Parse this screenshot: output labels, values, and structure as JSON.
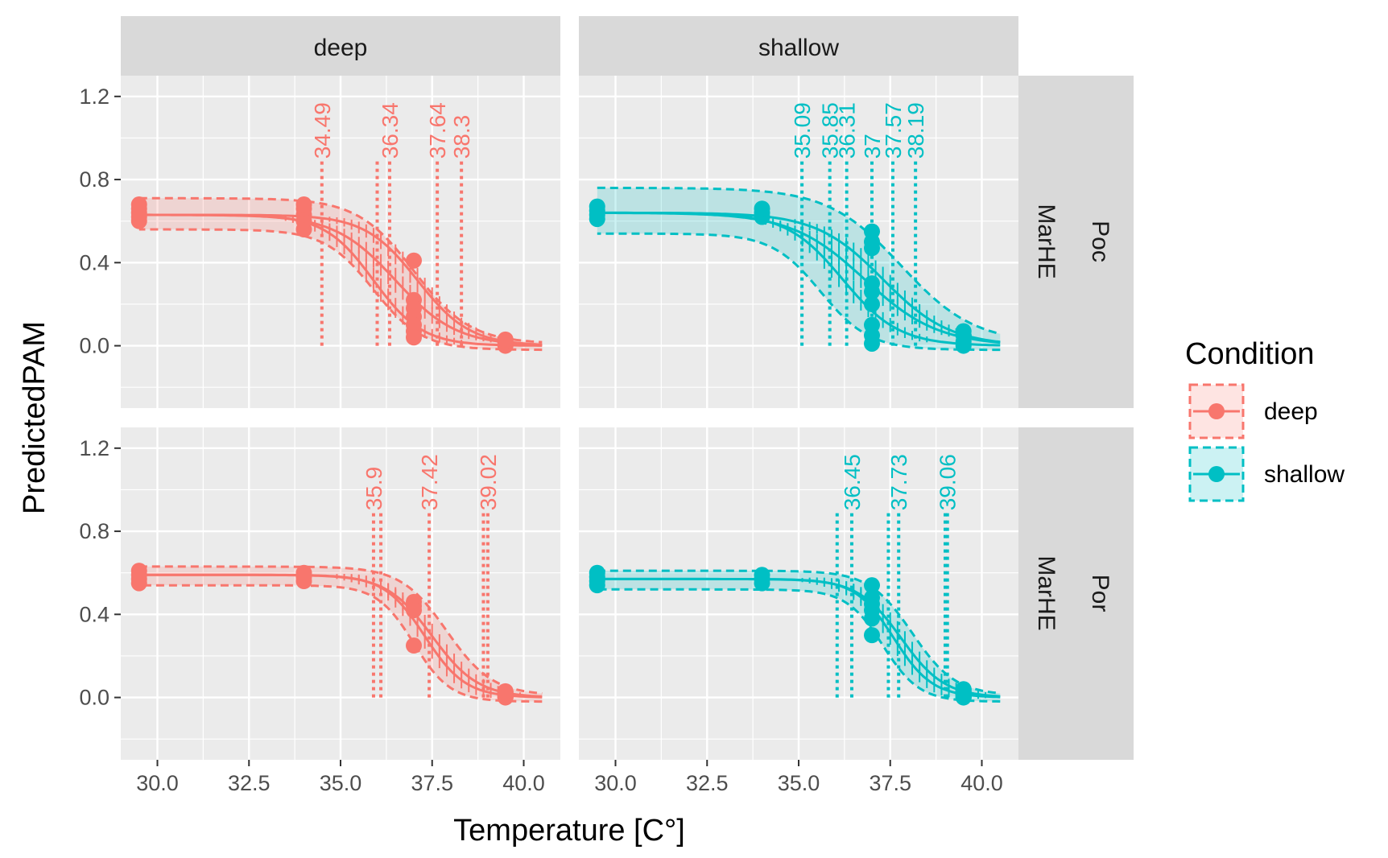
{
  "chart_data": {
    "type": "line",
    "xlabel": "Temperature [C°]",
    "ylabel": "PredictedPAM",
    "xlim": [
      29.0,
      41.0
    ],
    "ylim": [
      -0.3,
      1.3
    ],
    "x_ticks": [
      "30.0",
      "32.5",
      "35.0",
      "37.5",
      "40.0"
    ],
    "x_tick_values": [
      30.0,
      32.5,
      35.0,
      37.5,
      40.0
    ],
    "y_ticks": [
      "0.0",
      "0.4",
      "0.8",
      "1.2"
    ],
    "y_tick_values": [
      0.0,
      0.4,
      0.8,
      1.2
    ],
    "grid": true,
    "legend": {
      "title": "Condition",
      "position": "right",
      "entries": [
        "deep",
        "shallow"
      ]
    },
    "colors": {
      "deep": "#F8766D",
      "shallow": "#00BFC4",
      "panel_bg": "#EBEBEB",
      "strip_bg": "#D9D9D9"
    },
    "column_strips": [
      "deep",
      "shallow"
    ],
    "row_strips": [
      {
        "right": "Poc",
        "left": "MarHE"
      },
      {
        "right": "Por",
        "left": "MarHE"
      }
    ],
    "panels": [
      {
        "row": 0,
        "col": 0,
        "condition": "deep",
        "curves": [
          {
            "top": 0.63,
            "mid": 35.9,
            "k": 1.5
          },
          {
            "top": 0.63,
            "mid": 36.5,
            "k": 1.2
          },
          {
            "top": 0.63,
            "mid": 37.1,
            "k": 1.4
          }
        ],
        "band": {
          "upper": {
            "top": 0.7,
            "mid": 37.0,
            "k": 1.3
          },
          "lower": {
            "top": 0.58,
            "mid": 35.9,
            "k": 1.5
          }
        },
        "points": [
          [
            29.5,
            0.6
          ],
          [
            29.5,
            0.62
          ],
          [
            29.5,
            0.64
          ],
          [
            29.5,
            0.66
          ],
          [
            29.5,
            0.68
          ],
          [
            34.0,
            0.56
          ],
          [
            34.0,
            0.6
          ],
          [
            34.0,
            0.63
          ],
          [
            34.0,
            0.66
          ],
          [
            34.0,
            0.68
          ],
          [
            37.0,
            0.41
          ],
          [
            37.0,
            0.22
          ],
          [
            37.0,
            0.18
          ],
          [
            37.0,
            0.14
          ],
          [
            37.0,
            0.1
          ],
          [
            37.0,
            0.07
          ],
          [
            37.0,
            0.04
          ],
          [
            39.5,
            0.0
          ],
          [
            39.5,
            0.02
          ],
          [
            39.5,
            0.03
          ]
        ],
        "ed_values": [
          34.49,
          36.34,
          37.64,
          38.3
        ],
        "ed_labels": [
          "34.49",
          "36.34",
          "37.64",
          "38.3"
        ],
        "ed_lines": [
          34.49,
          36.0,
          36.34,
          37.64,
          38.3
        ]
      },
      {
        "row": 0,
        "col": 1,
        "condition": "shallow",
        "curves": [
          {
            "top": 0.64,
            "mid": 36.2,
            "k": 1.3
          },
          {
            "top": 0.64,
            "mid": 36.8,
            "k": 1.0
          },
          {
            "top": 0.64,
            "mid": 37.3,
            "k": 1.1
          }
        ],
        "band": {
          "upper": {
            "top": 0.75,
            "mid": 37.8,
            "k": 1.0
          },
          "lower": {
            "top": 0.56,
            "mid": 35.6,
            "k": 1.5
          }
        },
        "points": [
          [
            29.5,
            0.61
          ],
          [
            29.5,
            0.63
          ],
          [
            29.5,
            0.65
          ],
          [
            29.5,
            0.67
          ],
          [
            34.0,
            0.62
          ],
          [
            34.0,
            0.64
          ],
          [
            34.0,
            0.66
          ],
          [
            37.0,
            0.55
          ],
          [
            37.0,
            0.5
          ],
          [
            37.0,
            0.47
          ],
          [
            37.0,
            0.3
          ],
          [
            37.0,
            0.26
          ],
          [
            37.0,
            0.2
          ],
          [
            37.0,
            0.1
          ],
          [
            37.0,
            0.05
          ],
          [
            37.0,
            0.01
          ],
          [
            39.5,
            0.0
          ],
          [
            39.5,
            0.02
          ],
          [
            39.5,
            0.05
          ],
          [
            39.5,
            0.07
          ]
        ],
        "ed_values": [
          35.09,
          35.85,
          36.31,
          37.0,
          37.57,
          38.19
        ],
        "ed_labels": [
          "35.09",
          "35.85",
          "36.31",
          "37",
          "37.57",
          "38.19"
        ],
        "ed_lines": [
          35.09,
          35.85,
          36.31,
          37.0,
          37.57,
          38.19
        ]
      },
      {
        "row": 1,
        "col": 0,
        "condition": "deep",
        "curves": [
          {
            "top": 0.59,
            "mid": 37.3,
            "k": 1.8
          },
          {
            "top": 0.59,
            "mid": 37.5,
            "k": 1.6
          }
        ],
        "band": {
          "upper": {
            "top": 0.62,
            "mid": 37.9,
            "k": 1.6
          },
          "lower": {
            "top": 0.56,
            "mid": 37.0,
            "k": 2.0
          }
        },
        "points": [
          [
            29.5,
            0.55
          ],
          [
            29.5,
            0.57
          ],
          [
            29.5,
            0.59
          ],
          [
            29.5,
            0.61
          ],
          [
            34.0,
            0.56
          ],
          [
            34.0,
            0.58
          ],
          [
            34.0,
            0.6
          ],
          [
            37.0,
            0.46
          ],
          [
            37.0,
            0.44
          ],
          [
            37.0,
            0.42
          ],
          [
            37.0,
            0.25
          ],
          [
            39.5,
            0.0
          ],
          [
            39.5,
            0.02
          ],
          [
            39.5,
            0.03
          ]
        ],
        "ed_values": [
          35.9,
          37.42,
          39.02
        ],
        "ed_labels": [
          "35.9",
          "37.42",
          "39.02"
        ],
        "ed_lines": [
          35.9,
          36.1,
          37.42,
          38.9,
          39.02
        ]
      },
      {
        "row": 1,
        "col": 1,
        "condition": "shallow",
        "curves": [
          {
            "top": 0.57,
            "mid": 37.6,
            "k": 1.9
          },
          {
            "top": 0.57,
            "mid": 37.8,
            "k": 1.7
          }
        ],
        "band": {
          "upper": {
            "top": 0.6,
            "mid": 38.1,
            "k": 1.7
          },
          "lower": {
            "top": 0.54,
            "mid": 37.3,
            "k": 2.0
          }
        },
        "points": [
          [
            29.5,
            0.54
          ],
          [
            29.5,
            0.56
          ],
          [
            29.5,
            0.58
          ],
          [
            29.5,
            0.6
          ],
          [
            34.0,
            0.55
          ],
          [
            34.0,
            0.57
          ],
          [
            34.0,
            0.59
          ],
          [
            37.0,
            0.54
          ],
          [
            37.0,
            0.48
          ],
          [
            37.0,
            0.45
          ],
          [
            37.0,
            0.42
          ],
          [
            37.0,
            0.38
          ],
          [
            37.0,
            0.3
          ],
          [
            39.5,
            0.0
          ],
          [
            39.5,
            0.02
          ],
          [
            39.5,
            0.04
          ]
        ],
        "ed_values": [
          36.45,
          37.73,
          39.06
        ],
        "ed_labels": [
          "36.45",
          "37.73",
          "39.06"
        ],
        "ed_lines": [
          36.05,
          36.45,
          37.45,
          37.73,
          39.0,
          39.06
        ]
      }
    ]
  }
}
